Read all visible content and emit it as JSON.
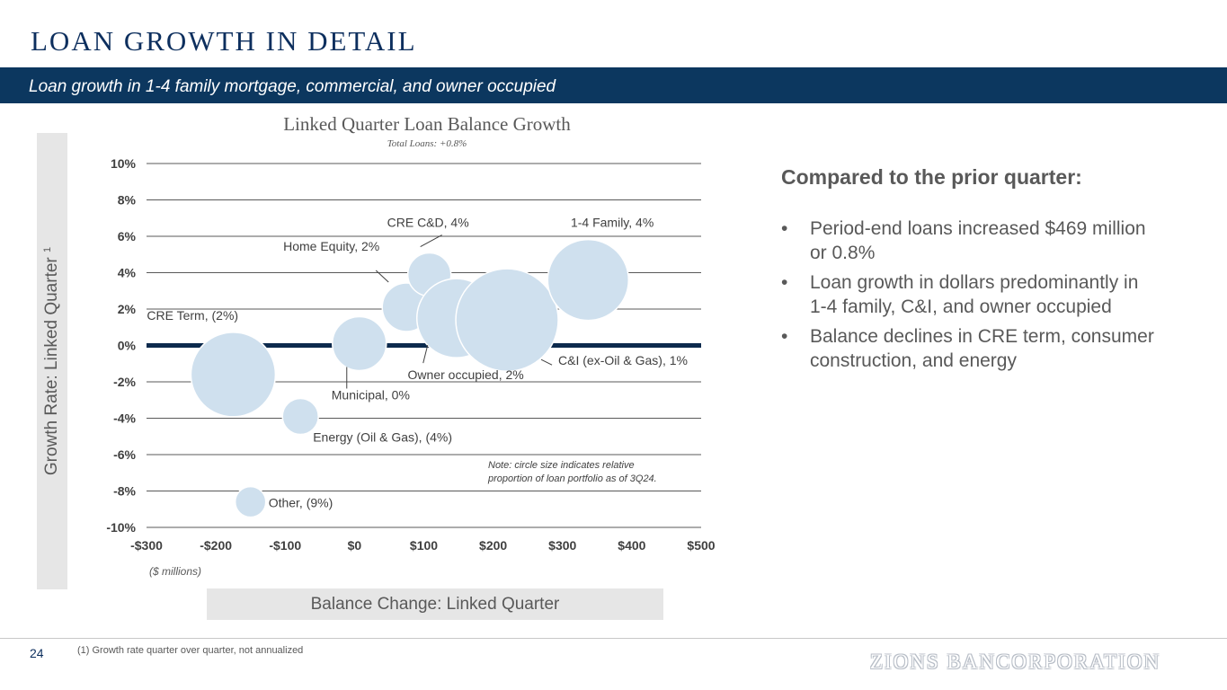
{
  "header": {
    "title": "LOAN GROWTH IN DETAIL",
    "subtitle": "Loan growth in 1-4 family mortgage, commercial, and owner occupied"
  },
  "chart_data": {
    "type": "scatter",
    "subtype": "bubble",
    "title": "Linked Quarter Loan Balance Growth",
    "subtitle": "Total Loans: +0.8%",
    "xlabel": "Balance Change: Linked Quarter",
    "xunit": "($ millions)",
    "ylabel": "Growth Rate: Linked Quarter",
    "ylabel_superscript": "1",
    "xlim": [
      -300,
      500
    ],
    "ylim": [
      -10,
      10
    ],
    "x_ticks": [
      -300,
      -200,
      -100,
      0,
      100,
      200,
      300,
      400,
      500
    ],
    "x_tick_labels": [
      "-$300",
      "-$200",
      "-$100",
      "$0",
      "$100",
      "$200",
      "$300",
      "$400",
      "$500"
    ],
    "y_ticks": [
      10,
      8,
      6,
      4,
      2,
      0,
      -2,
      -4,
      -6,
      -8,
      -10
    ],
    "y_tick_labels": [
      "10%",
      "8%",
      "6%",
      "4%",
      "2%",
      "0%",
      "-2%",
      "-4%",
      "-6%",
      "-8%",
      "-10%"
    ],
    "grid": true,
    "note": "Note: circle size indicates relative proportion of loan portfolio as of 3Q24.",
    "points": [
      {
        "label": "CRE Term, (2%)",
        "x": -175,
        "y": -1.6,
        "r": 47
      },
      {
        "label": "Other, (9%)",
        "x": -150,
        "y": -8.6,
        "r": 17
      },
      {
        "label": "Energy (Oil & Gas), (4%)",
        "x": -78,
        "y": -3.9,
        "r": 20
      },
      {
        "label": "Municipal, 0%",
        "x": 7,
        "y": 0.1,
        "r": 30
      },
      {
        "label": "Home Equity, 2%",
        "x": 75,
        "y": 2.1,
        "r": 27
      },
      {
        "label": "CRE C&D, 4%",
        "x": 108,
        "y": 3.9,
        "r": 24
      },
      {
        "label": "Owner occupied, 2%",
        "x": 147,
        "y": 1.5,
        "r": 44
      },
      {
        "label": "C&I (ex-Oil & Gas), 1%",
        "x": 220,
        "y": 1.4,
        "r": 57
      },
      {
        "label": "1-4 Family, 4%",
        "x": 337,
        "y": 3.6,
        "r": 45
      }
    ],
    "bubble_color": "#cfe0ee",
    "zero_line_color": "#0c2a4d"
  },
  "right_panel": {
    "heading": "Compared to the prior quarter:",
    "bullet_char": "•",
    "bullets": [
      "Period-end loans increased $469 million or 0.8%",
      "Loan growth in dollars predominantly in 1-4 family, C&I, and owner occupied",
      "Balance declines in CRE term, consumer construction, and energy"
    ]
  },
  "footer": {
    "page_number": "24",
    "footnote": "(1) Growth rate quarter over quarter, not annualized",
    "brand": "ZIONS BANCORPORATION"
  }
}
